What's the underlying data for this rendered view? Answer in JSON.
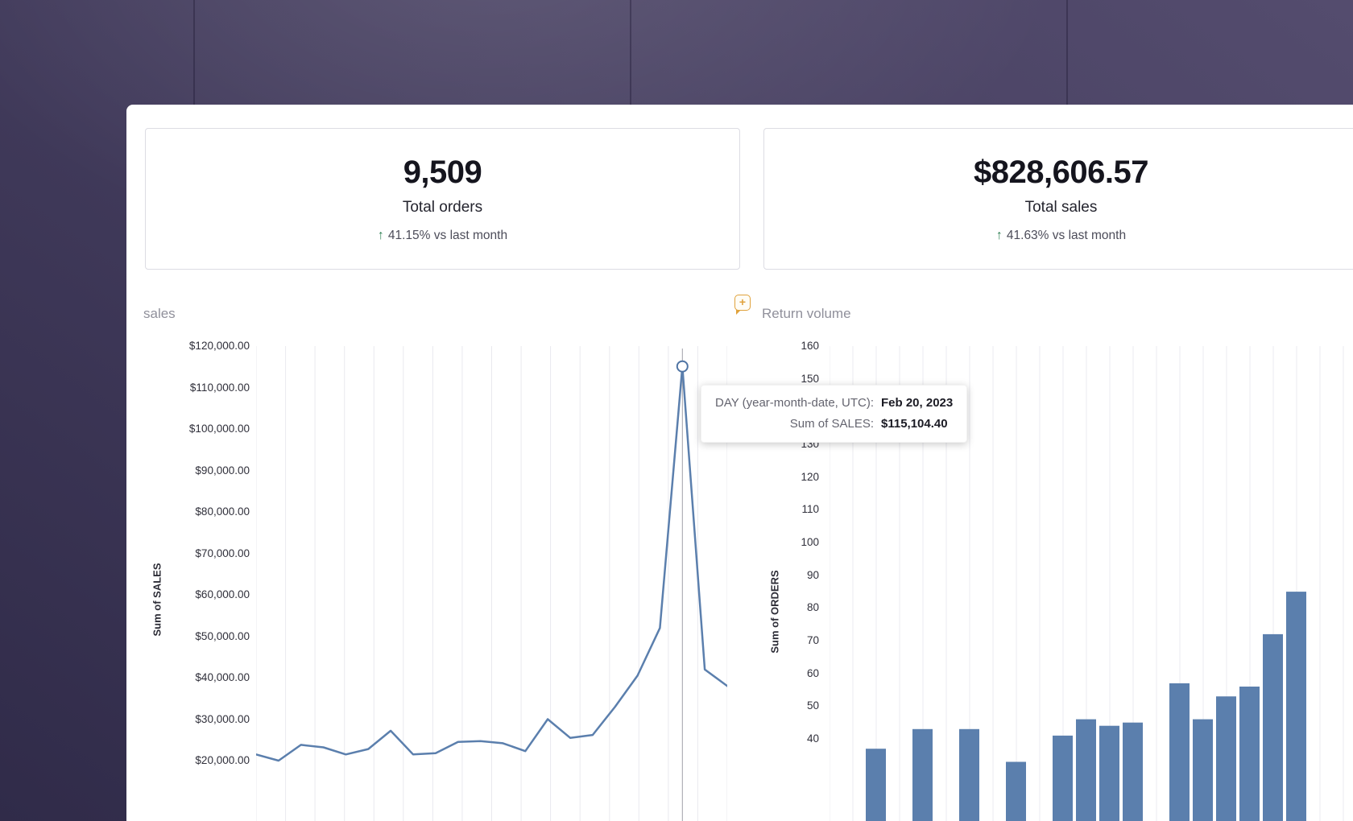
{
  "kpi_cards": [
    {
      "value": "9,509",
      "label": "Total orders",
      "delta_arrow": "↑",
      "delta_text": "41.15% vs last month"
    },
    {
      "value": "$828,606.57",
      "label": "Total sales",
      "delta_arrow": "↑",
      "delta_text": "41.63% vs last month"
    }
  ],
  "left_chart": {
    "title": "sales",
    "ylabel": "Sum of SALES"
  },
  "right_chart": {
    "title": "Return volume",
    "ylabel": "Sum of ORDERS"
  },
  "annotation": {
    "plus": "+"
  },
  "tooltip": {
    "rows": [
      {
        "label": "DAY (year-month-date, UTC):",
        "value": "Feb 20, 2023"
      },
      {
        "label": "Sum of SALES:",
        "value": "$115,104.40"
      }
    ]
  },
  "chart_data": [
    {
      "type": "line",
      "title": "sales",
      "ylabel": "Sum of SALES",
      "xlabel": "",
      "y_ticks": [
        "$120,000.00",
        "$110,000.00",
        "$100,000.00",
        "$90,000.00",
        "$80,000.00",
        "$70,000.00",
        "$60,000.00",
        "$50,000.00",
        "$40,000.00",
        "$30,000.00",
        "$20,000.00"
      ],
      "ylim": [
        20000,
        120000
      ],
      "grid": "vertical",
      "line_color": "#5b7fad",
      "values": [
        21500,
        20000,
        23800,
        23200,
        21500,
        22800,
        27200,
        21500,
        21800,
        24500,
        24700,
        24200,
        22300,
        30000,
        25500,
        26200,
        33000,
        40500,
        52000,
        115104.4,
        42000,
        38000
      ],
      "highlight": {
        "index": 19,
        "date": "Feb 20, 2023",
        "value": 115104.4
      }
    },
    {
      "type": "bar",
      "title": "Return volume",
      "ylabel": "Sum of ORDERS",
      "xlabel": "",
      "y_ticks": [
        "160",
        "150",
        "140",
        "130",
        "120",
        "110",
        "100",
        "90",
        "80",
        "70",
        "60",
        "50",
        "40"
      ],
      "ylim": [
        40,
        160
      ],
      "grid": "vertical",
      "bar_color": "#5b7fad",
      "values": [
        37,
        null,
        43,
        null,
        43,
        null,
        33,
        null,
        41,
        46,
        44,
        45,
        null,
        57,
        46,
        53,
        56,
        72,
        85
      ]
    }
  ]
}
